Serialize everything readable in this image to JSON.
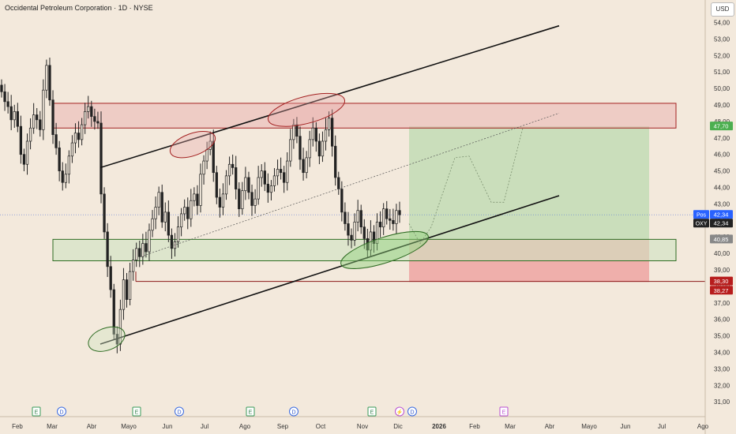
{
  "header": {
    "title": "Occidental Petroleum Corporation · 1D · NYSE",
    "currency": "USD"
  },
  "colors": {
    "background": "#f3e9dc",
    "resistance_zone": "#e8a8a8",
    "support_zone": "#cfe3c1",
    "profit_zone": "#bcd9b0",
    "loss_zone": "#ee9b9b",
    "candle": "#222222",
    "price_badge": "#2962ff",
    "target_badge": "#4caf50",
    "stop_badge": "#b71c1c"
  },
  "chart_data": {
    "type": "candlestick",
    "title": "Occidental Petroleum Corporation · 1D · NYSE",
    "ylim": [
      30.5,
      54.5
    ],
    "y_ticks": [
      "54,00",
      "53,00",
      "52,00",
      "51,00",
      "50,00",
      "49,00",
      "48,00",
      "47,00",
      "46,00",
      "45,00",
      "44,00",
      "43,00",
      "42,00",
      "41,00",
      "40,00",
      "39,00",
      "38,00",
      "37,00",
      "36,00",
      "35,00",
      "34,00",
      "33,00",
      "32,00",
      "31,00"
    ],
    "x_ticks": [
      "Feb",
      "Mar",
      "Abr",
      "Mayo",
      "Jun",
      "Jul",
      "Ago",
      "Sep",
      "Oct",
      "Nov",
      "Dic",
      "2026",
      "Feb",
      "Mar",
      "Abr",
      "Mayo",
      "Jun",
      "Jul",
      "Ago"
    ],
    "closes": [
      49.8,
      49.2,
      48.9,
      48.1,
      48.6,
      47.7,
      46.0,
      45.4,
      46.8,
      47.6,
      48.4,
      48.1,
      47.5,
      49.9,
      51.4,
      49.3,
      47.2,
      46.4,
      45.0,
      44.3,
      44.8,
      45.9,
      46.7,
      47.3,
      46.9,
      47.8,
      48.6,
      48.9,
      48.3,
      48.0,
      47.9,
      43.6,
      41.3,
      39.2,
      37.8,
      35.1,
      34.5,
      36.6,
      38.4,
      37.2,
      38.9,
      39.6,
      40.3,
      39.8,
      40.6,
      40.1,
      41.4,
      42.1,
      42.8,
      43.7,
      41.9,
      42.5,
      41.1,
      40.3,
      40.7,
      41.6,
      42.4,
      42.8,
      42.1,
      43.2,
      43.6,
      42.9,
      44.8,
      45.6,
      46.3,
      46.8,
      44.9,
      43.4,
      42.8,
      43.6,
      44.7,
      45.4,
      45.2,
      43.9,
      42.7,
      43.8,
      44.6,
      43.7,
      42.9,
      43.3,
      44.6,
      45.0,
      44.2,
      43.7,
      44.1,
      44.7,
      45.1,
      44.9,
      44.3,
      45.6,
      46.9,
      47.8,
      47.1,
      45.7,
      44.9,
      45.8,
      46.9,
      47.6,
      46.8,
      45.9,
      46.8,
      47.5,
      48.2,
      46.5,
      44.6,
      43.9,
      42.5,
      41.8,
      41.1,
      40.8,
      41.9,
      42.6,
      41.6,
      40.9,
      40.2,
      41.3,
      40.6,
      41.9,
      41.6,
      42.7,
      42.1,
      42.0,
      41.8,
      42.6,
      42.34
    ],
    "current_price": "42,34",
    "price_labels": [
      {
        "label": "Pos",
        "value": "42,34"
      },
      {
        "label": "OXY",
        "value": "42,34"
      },
      {
        "label": "",
        "value": "47,70"
      },
      {
        "label": "",
        "value": "40,85"
      },
      {
        "label": "",
        "value": "38,30"
      },
      {
        "label": "",
        "value": "38,27"
      }
    ],
    "zones": [
      {
        "name": "resistance",
        "from": 47.6,
        "to": 49.1
      },
      {
        "name": "support",
        "from": 39.55,
        "to": 40.85
      }
    ],
    "position": {
      "target": 47.7,
      "entry": 40.85,
      "stop": 38.27
    },
    "event_markers": [
      "E",
      "D",
      "E",
      "D",
      "E",
      "D",
      "E",
      "D",
      "E"
    ]
  }
}
